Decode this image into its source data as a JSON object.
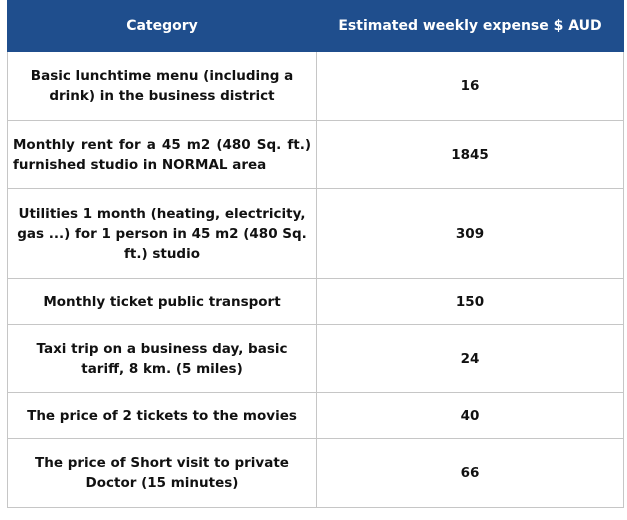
{
  "table": {
    "headers": {
      "category": "Category",
      "expense": "Estimated weekly expense $ AUD"
    },
    "rows": [
      {
        "category": "Basic lunchtime menu (including a drink) in the business district",
        "value": "16"
      },
      {
        "category": "Monthly rent for a 45 m2 (480 Sq. ft.) furnished studio in NORMAL area",
        "value": "1845"
      },
      {
        "category": "Utilities 1 month (heating, electricity, gas ...) for 1 person in 45 m2 (480 Sq. ft.) studio",
        "value": "309"
      },
      {
        "category": "Monthly ticket public transport",
        "value": "150"
      },
      {
        "category": "Taxi trip on a business day, basic tariff, 8 km. (5 miles)",
        "value": "24"
      },
      {
        "category": "The price of 2 tickets to the movies",
        "value": "40"
      },
      {
        "category": "The price of Short visit to private Doctor (15 minutes)",
        "value": "66"
      }
    ]
  },
  "colors": {
    "header_background": "#1f4e8d",
    "header_text": "#ffffff",
    "cell_border": "#c6c6c6"
  }
}
